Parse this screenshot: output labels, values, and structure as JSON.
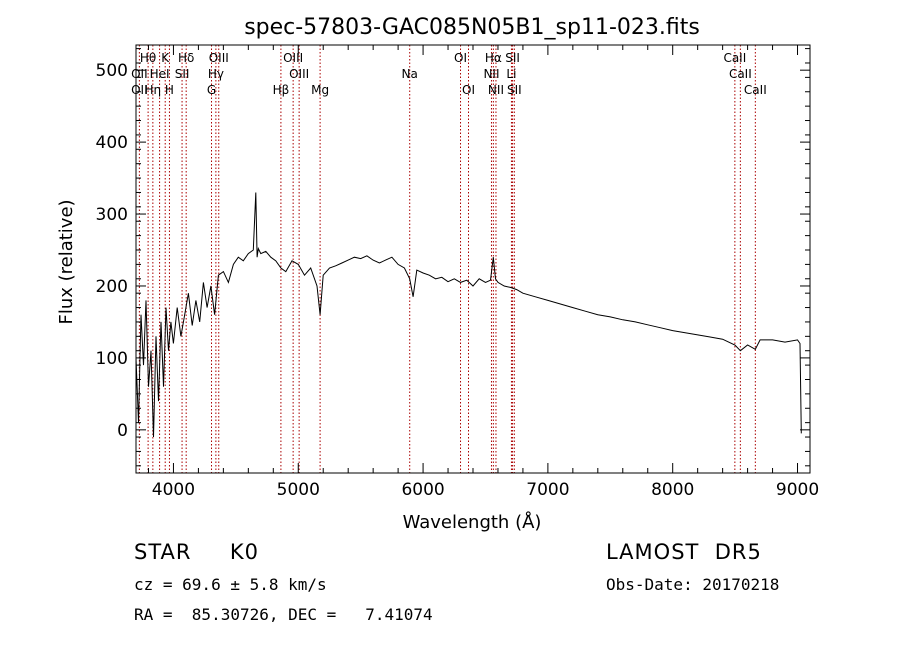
{
  "chart_data": {
    "type": "line",
    "title": "spec-57803-GAC085N05B1_sp11-023.fits",
    "xlabel": "Wavelength (Å)",
    "ylabel": "Flux (relative)",
    "xlim": [
      3700,
      9100
    ],
    "ylim": [
      -60,
      535
    ],
    "x_ticks": [
      4000,
      5000,
      6000,
      7000,
      8000,
      9000
    ],
    "y_ticks": [
      0,
      100,
      200,
      300,
      400,
      500
    ],
    "grid": false,
    "series": [
      {
        "x": [
          3700,
          3720,
          3740,
          3760,
          3780,
          3800,
          3820,
          3840,
          3860,
          3880,
          3900,
          3920,
          3940,
          3960,
          3980,
          4000,
          4030,
          4060,
          4090,
          4120,
          4150,
          4180,
          4210,
          4240,
          4270,
          4300,
          4330,
          4360,
          4400,
          4440,
          4480,
          4520,
          4560,
          4600,
          4640,
          4660,
          4670,
          4680,
          4700,
          4740,
          4780,
          4820,
          4861,
          4900,
          4950,
          5000,
          5050,
          5100,
          5150,
          5175,
          5200,
          5250,
          5300,
          5350,
          5400,
          5450,
          5500,
          5550,
          5600,
          5650,
          5700,
          5750,
          5800,
          5850,
          5893,
          5920,
          5950,
          6000,
          6050,
          6100,
          6150,
          6200,
          6250,
          6300,
          6350,
          6400,
          6450,
          6500,
          6540,
          6563,
          6580,
          6600,
          6650,
          6700,
          6750,
          6800,
          6900,
          7000,
          7100,
          7200,
          7300,
          7400,
          7500,
          7600,
          7700,
          7800,
          7900,
          8000,
          8100,
          8200,
          8300,
          8400,
          8498,
          8542,
          8600,
          8662,
          8700,
          8800,
          8900,
          9000,
          9020,
          9030
        ],
        "y": [
          100,
          10,
          160,
          90,
          180,
          60,
          110,
          -10,
          130,
          40,
          150,
          60,
          170,
          110,
          150,
          120,
          170,
          130,
          160,
          190,
          145,
          180,
          150,
          205,
          170,
          200,
          160,
          215,
          220,
          205,
          230,
          240,
          235,
          245,
          250,
          330,
          240,
          252,
          245,
          248,
          240,
          235,
          225,
          220,
          235,
          230,
          215,
          225,
          200,
          160,
          215,
          225,
          228,
          232,
          236,
          240,
          238,
          242,
          236,
          232,
          236,
          240,
          230,
          225,
          210,
          185,
          222,
          218,
          215,
          210,
          212,
          206,
          210,
          205,
          208,
          200,
          210,
          205,
          208,
          240,
          210,
          205,
          200,
          198,
          195,
          190,
          185,
          180,
          175,
          170,
          165,
          160,
          157,
          153,
          150,
          146,
          142,
          138,
          135,
          132,
          129,
          126,
          118,
          110,
          118,
          112,
          125,
          125,
          122,
          125,
          120,
          -5
        ]
      }
    ],
    "lines": [
      {
        "label": "Hθ",
        "x": 3797,
        "row": 0
      },
      {
        "label": "K",
        "x": 3934,
        "row": 0
      },
      {
        "label": "Hδ",
        "x": 4102,
        "row": 0
      },
      {
        "label": "OIII",
        "x": 4363,
        "row": 0
      },
      {
        "label": "OIII",
        "x": 4959,
        "row": 0
      },
      {
        "label": "OI",
        "x": 6300,
        "row": 0
      },
      {
        "label": "Hα",
        "x": 6563,
        "row": 0
      },
      {
        "label": "SII",
        "x": 6717,
        "row": 0
      },
      {
        "label": "CaII",
        "x": 8498,
        "row": 0
      },
      {
        "label": "OII",
        "x": 3727,
        "row": 1
      },
      {
        "label": "HeI",
        "x": 3889,
        "row": 1
      },
      {
        "label": "SII",
        "x": 4069,
        "row": 1
      },
      {
        "label": "Hγ",
        "x": 4340,
        "row": 1
      },
      {
        "label": "OIII",
        "x": 5007,
        "row": 1
      },
      {
        "label": "Na",
        "x": 5893,
        "row": 1
      },
      {
        "label": "NII",
        "x": 6548,
        "row": 1
      },
      {
        "label": "Li",
        "x": 6708,
        "row": 1
      },
      {
        "label": "CaII",
        "x": 8542,
        "row": 1
      },
      {
        "label": "OII",
        "x": 3727,
        "row": 2
      },
      {
        "label": "Hη",
        "x": 3835,
        "row": 2
      },
      {
        "label": "H",
        "x": 3968,
        "row": 2
      },
      {
        "label": "G",
        "x": 4305,
        "row": 2
      },
      {
        "label": "Hβ",
        "x": 4861,
        "row": 2
      },
      {
        "label": "Mg",
        "x": 5175,
        "row": 2
      },
      {
        "label": "OI",
        "x": 6364,
        "row": 2
      },
      {
        "label": "NII",
        "x": 6584,
        "row": 2
      },
      {
        "label": "SII",
        "x": 6731,
        "row": 2
      },
      {
        "label": "CaII",
        "x": 8662,
        "row": 2
      }
    ],
    "line_color": "#aa0000"
  },
  "info": {
    "object": "STAR     K0",
    "survey": "LAMOST  DR5",
    "cz": "cz = 69.6 ± 5.8 km/s",
    "obs_date": "Obs-Date: 20170218",
    "coords": "RA =  85.30726, DEC =   7.41074"
  }
}
